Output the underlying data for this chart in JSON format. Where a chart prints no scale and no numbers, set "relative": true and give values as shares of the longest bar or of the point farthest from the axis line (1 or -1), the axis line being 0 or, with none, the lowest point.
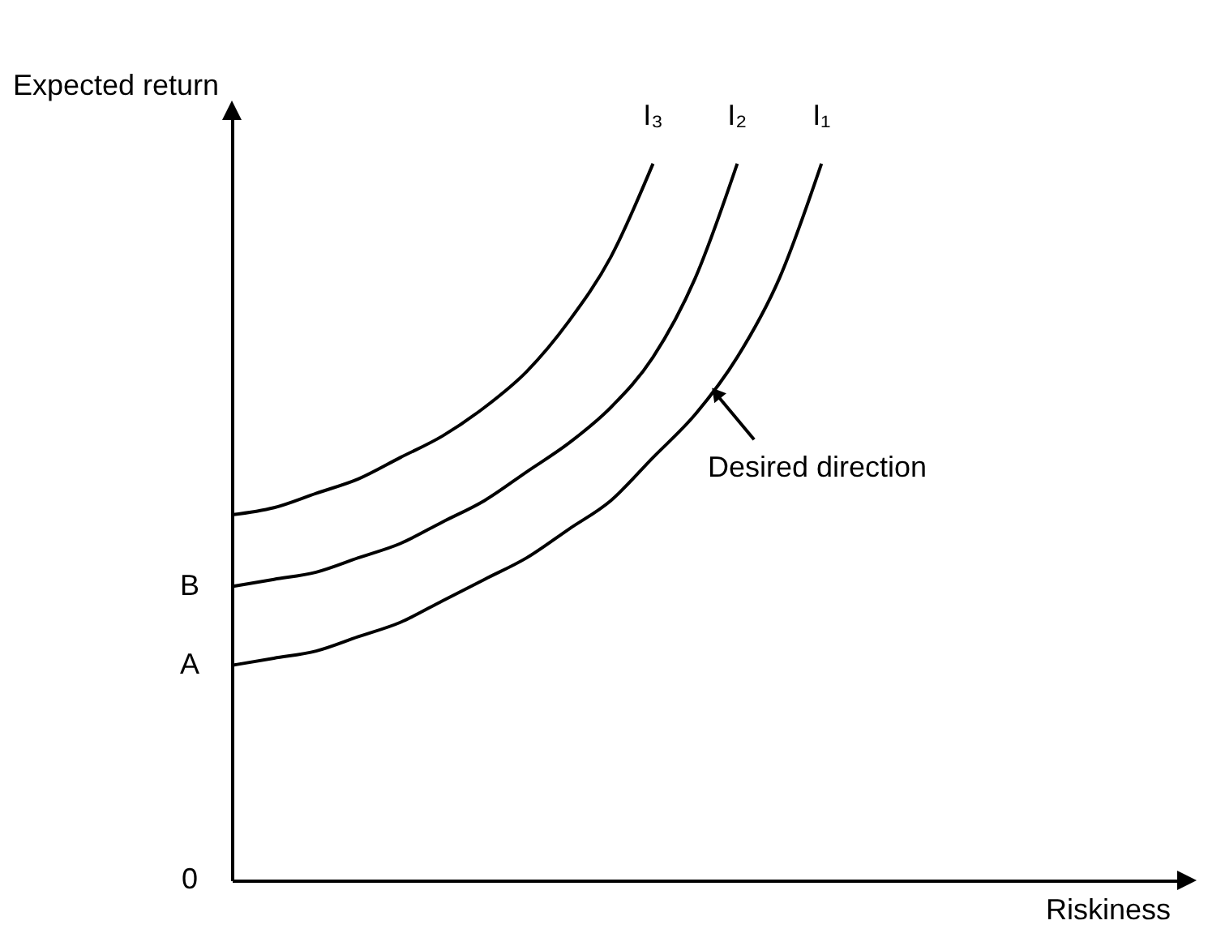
{
  "chart_data": {
    "type": "line",
    "relative": true,
    "ylabel": "Expected return",
    "categories": [
      null,
      null,
      null,
      null,
      null,
      null,
      null,
      null,
      null,
      null,
      null,
      null,
      null,
      null,
      null
    ],
    "series": [
      {
        "name": "I₁",
        "color": "#000000",
        "values": [
          0.3,
          0.31,
          0.32,
          0.34,
          0.36,
          0.39,
          0.42,
          0.45,
          0.49,
          0.53,
          0.59,
          0.65,
          0.73,
          0.84,
          1
        ]
      },
      {
        "name": "I₂",
        "color": "#000000",
        "values": [
          0.41,
          0.42,
          0.43,
          0.45,
          0.47,
          0.5,
          0.53,
          0.57,
          0.61,
          0.66,
          0.73,
          0.84,
          1,
          null,
          null
        ]
      },
      {
        "name": "I₃",
        "color": "#000000",
        "values": [
          0.51,
          0.52,
          0.54,
          0.56,
          0.59,
          0.62,
          0.66,
          0.71,
          0.78,
          0.87,
          1,
          null,
          null,
          null,
          null
        ]
      }
    ],
    "annotations": [
      "Desired direction",
      "A",
      "B",
      "0",
      "Riskiness"
    ]
  }
}
